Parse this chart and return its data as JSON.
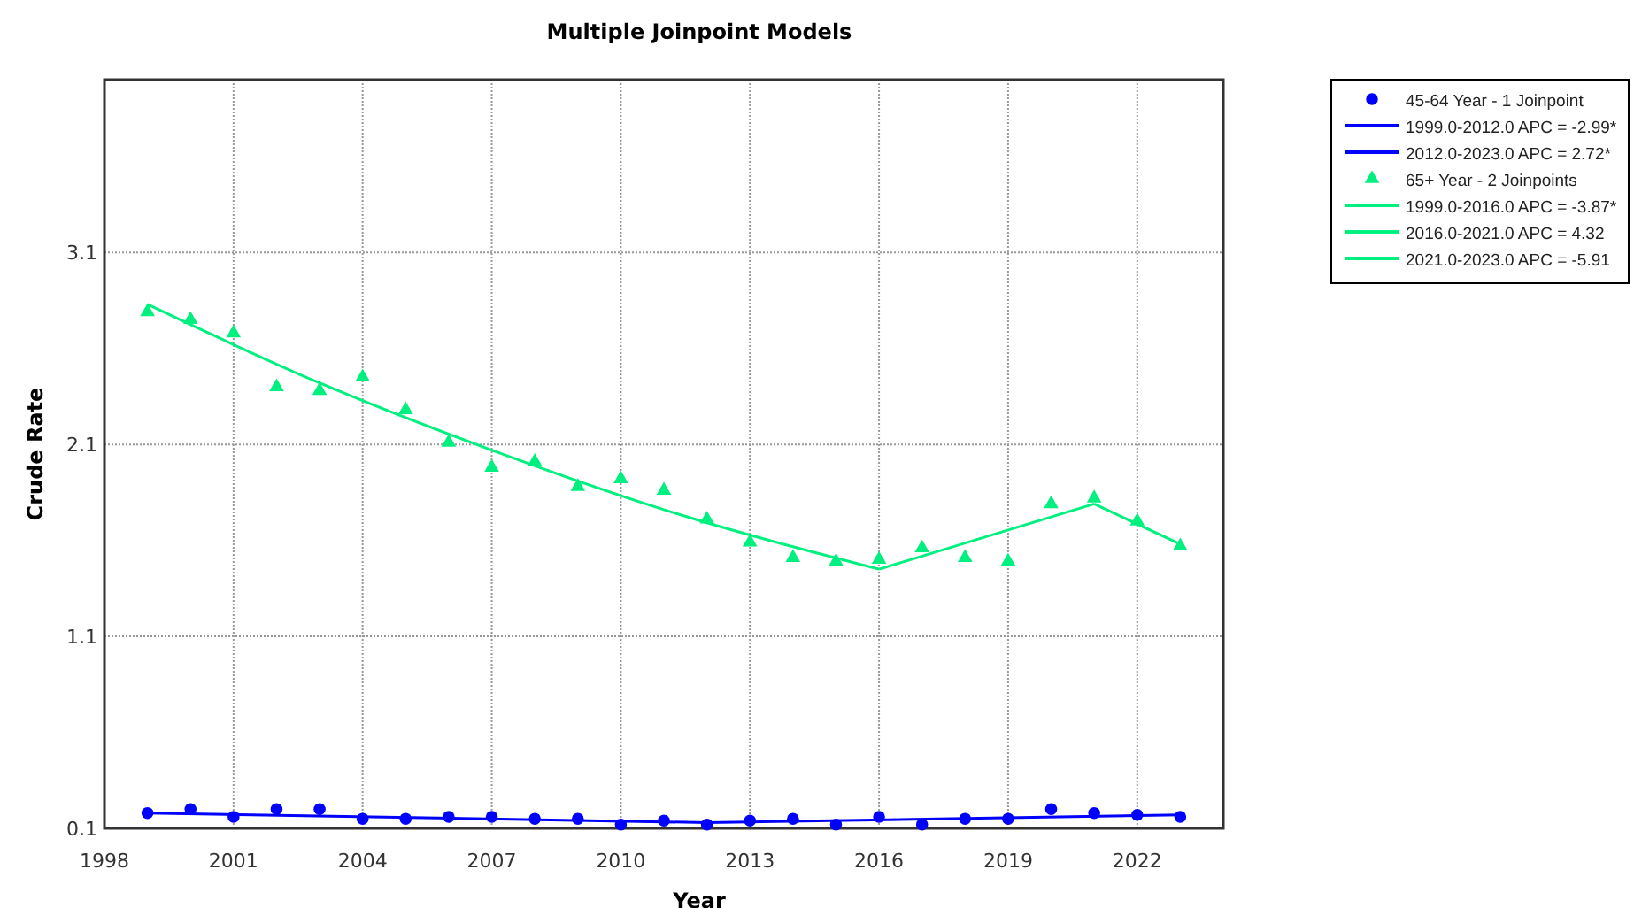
{
  "chart_data": {
    "type": "scatter",
    "title": "Multiple Joinpoint Models",
    "xlabel": "Year",
    "ylabel": "Crude Rate",
    "xlim": [
      1998,
      2024
    ],
    "xticks": [
      1998,
      2001,
      2004,
      2007,
      2010,
      2013,
      2016,
      2019,
      2022
    ],
    "ylim": [
      0.1,
      4.0
    ],
    "yticks": [
      0.1,
      1.1,
      2.1,
      3.1
    ],
    "grid": true,
    "legend": "top right",
    "series": [
      {
        "name": "45-64 Year - 1 Joinpoint",
        "type": "scatter",
        "marker": "circle",
        "color": "#0000ff",
        "x": [
          1999,
          2000,
          2001,
          2002,
          2003,
          2004,
          2005,
          2006,
          2007,
          2008,
          2009,
          2010,
          2011,
          2012,
          2013,
          2014,
          2015,
          2016,
          2017,
          2018,
          2019,
          2020,
          2021,
          2022,
          2023
        ],
        "values": [
          0.18,
          0.2,
          0.16,
          0.2,
          0.2,
          0.15,
          0.15,
          0.16,
          0.16,
          0.15,
          0.15,
          0.12,
          0.14,
          0.12,
          0.14,
          0.15,
          0.12,
          0.16,
          0.12,
          0.15,
          0.15,
          0.2,
          0.18,
          0.17,
          0.16
        ]
      },
      {
        "name": "1999.0-2012.0 APC = -2.99*",
        "type": "line",
        "marker": "none",
        "color": "#0000ff",
        "x": [
          1999,
          2012
        ],
        "values": [
          0.18,
          0.13
        ]
      },
      {
        "name": "2012.0-2023.0 APC = 2.72*",
        "type": "line",
        "marker": "none",
        "color": "#0000ff",
        "x": [
          2012,
          2023
        ],
        "values": [
          0.13,
          0.17
        ]
      },
      {
        "name": "65+ Year - 2 Joinpoints",
        "type": "scatter",
        "marker": "triangle",
        "color": "#00f080",
        "x": [
          1999,
          2000,
          2001,
          2002,
          2003,
          2004,
          2005,
          2006,
          2007,
          2008,
          2009,
          2010,
          2011,
          2012,
          2013,
          2014,
          2015,
          2016,
          2017,
          2018,
          2019,
          2020,
          2021,
          2022,
          2023
        ],
        "values": [
          2.79,
          2.75,
          2.68,
          2.4,
          2.38,
          2.45,
          2.28,
          2.11,
          1.98,
          2.01,
          1.88,
          1.92,
          1.86,
          1.71,
          1.59,
          1.51,
          1.49,
          1.5,
          1.56,
          1.51,
          1.49,
          1.79,
          1.82,
          1.7,
          1.57
        ]
      },
      {
        "name": "1999.0-2016.0 APC = -3.87*",
        "type": "line",
        "marker": "none",
        "color": "#00f080",
        "x": [
          1999,
          2003,
          2007,
          2011,
          2016
        ],
        "values": [
          2.83,
          2.42,
          2.07,
          1.76,
          1.45
        ]
      },
      {
        "name": "2016.0-2021.0 APC = 4.32",
        "type": "line",
        "marker": "none",
        "color": "#00f080",
        "x": [
          2016,
          2021
        ],
        "values": [
          1.45,
          1.79
        ]
      },
      {
        "name": "2021.0-2023.0 APC = -5.91",
        "type": "line",
        "marker": "none",
        "color": "#00f080",
        "x": [
          2021,
          2023
        ],
        "values": [
          1.79,
          1.58
        ]
      }
    ]
  }
}
